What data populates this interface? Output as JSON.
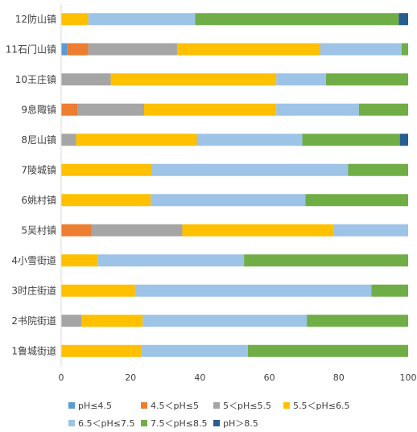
{
  "chart_data": {
    "type": "bar",
    "orientation": "horizontal",
    "stacked": true,
    "title": "",
    "xlabel": "",
    "ylabel": "",
    "xlim": [
      0,
      100
    ],
    "xticks": [
      0,
      20,
      40,
      60,
      80,
      100
    ],
    "grid": false,
    "legend_position": "bottom",
    "categories": [
      "12防山镇",
      "11石门山镇",
      "10王庄镇",
      "9息陬镇",
      "8尼山镇",
      "7陵城镇",
      "6姚村镇",
      "5吴村镇",
      "4小雪街道",
      "3时庄街道",
      "2书院街道",
      "1鲁城街道"
    ],
    "series": [
      {
        "name": "pH≤4.5",
        "color": "#5b9bd5",
        "values": [
          0,
          1.8,
          0,
          0,
          0,
          0,
          0,
          0,
          0,
          0,
          0,
          0
        ]
      },
      {
        "name": "4.5＜pH≤5",
        "color": "#ed7d31",
        "values": [
          0,
          6,
          0,
          4.8,
          0,
          0,
          0,
          8.8,
          0,
          0,
          0,
          0
        ]
      },
      {
        "name": "5＜pH≤5.5",
        "color": "#a5a5a5",
        "values": [
          0,
          25.6,
          14.3,
          19.1,
          4.3,
          0,
          0,
          26.1,
          0,
          0,
          5.8,
          0
        ]
      },
      {
        "name": "5.5＜pH≤6.5",
        "color": "#ffc000",
        "values": [
          7.8,
          41.2,
          47.7,
          38.1,
          34.8,
          26.1,
          25.8,
          43.5,
          10.5,
          21.3,
          17.7,
          23
        ]
      },
      {
        "name": "6.5＜pH≤7.5",
        "color": "#9dc3e6",
        "values": [
          30.8,
          23.5,
          14.3,
          23.8,
          30.4,
          56.6,
          44.6,
          21.6,
          42.2,
          68.1,
          47.3,
          30.8
        ]
      },
      {
        "name": "7.5＜pH≤8.5",
        "color": "#70ad47",
        "values": [
          58.7,
          1.9,
          23.7,
          14.2,
          28.1,
          17.3,
          29.6,
          0,
          47.3,
          10.6,
          29.2,
          46.2
        ]
      },
      {
        "name": "pH＞8.5",
        "color": "#255e91",
        "values": [
          2.7,
          0,
          0,
          0,
          2.4,
          0,
          0,
          0,
          0,
          0,
          0,
          0
        ]
      }
    ]
  }
}
